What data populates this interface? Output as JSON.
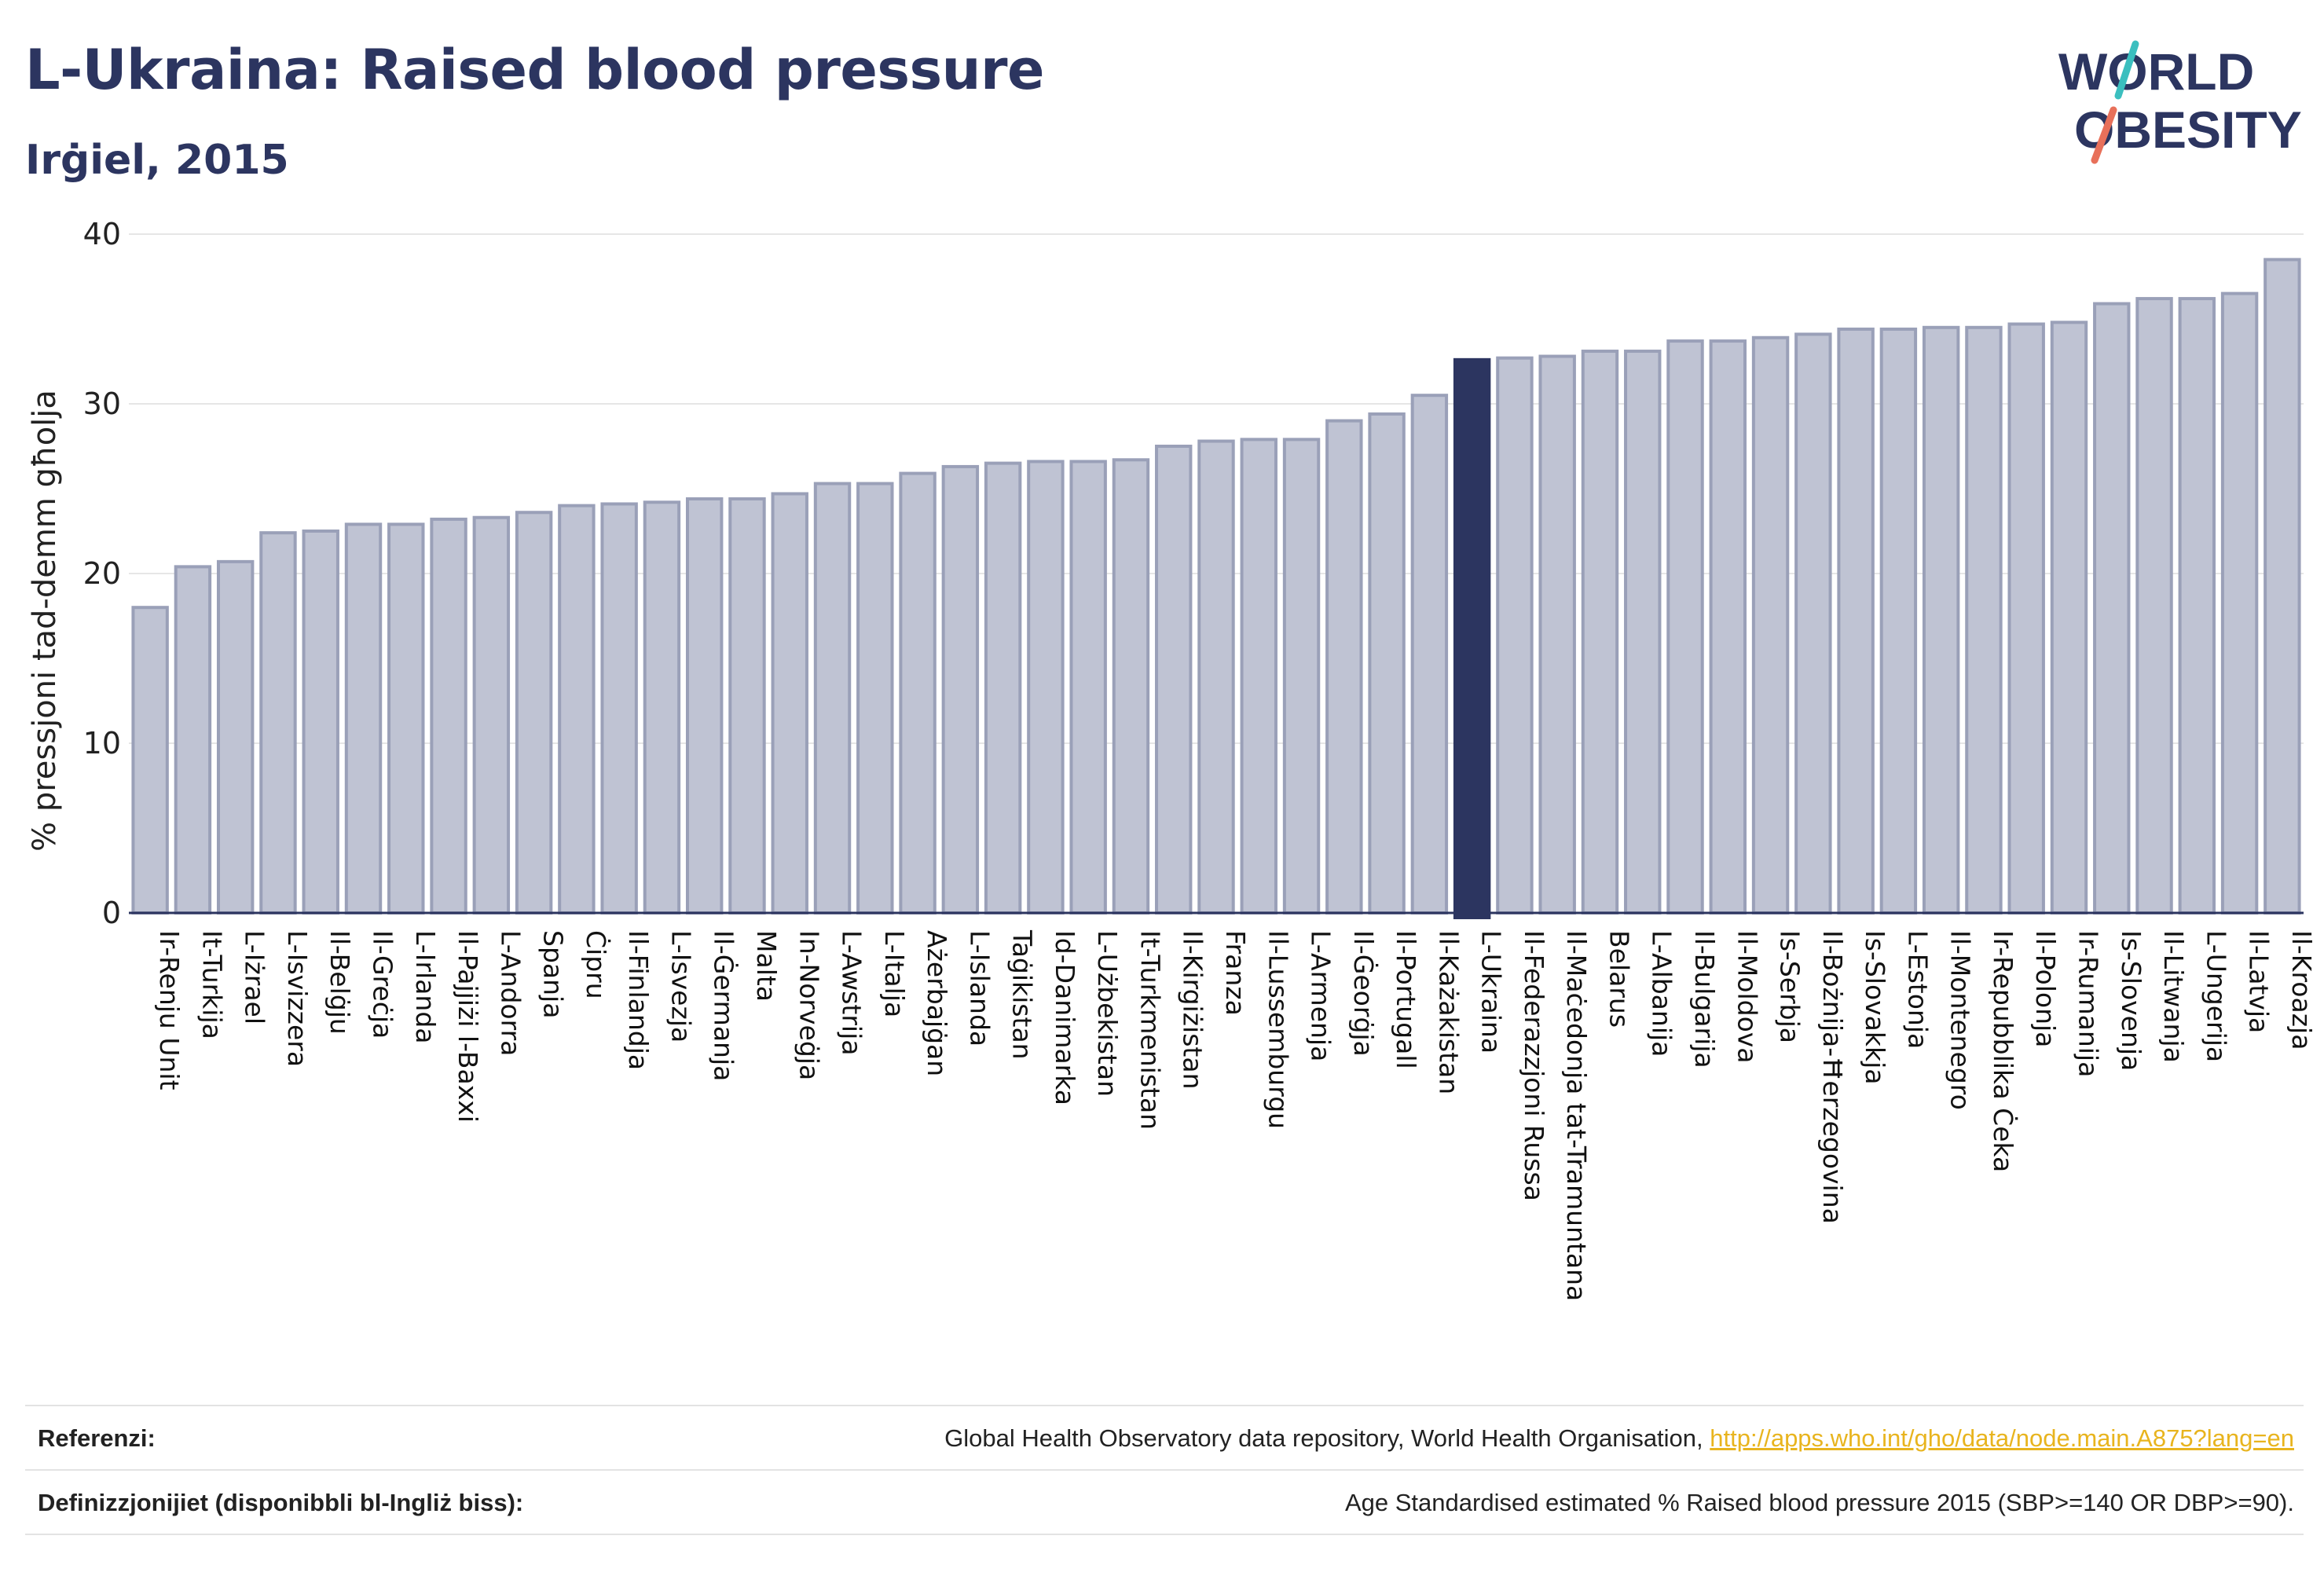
{
  "header": {
    "title": "L-Ukraina: Raised blood pressure",
    "subtitle": "Irġiel, 2015"
  },
  "logo": {
    "line1": "W",
    "line1b": "RLD",
    "line2": "BESITY",
    "text_color": "#2c3560",
    "slash_top_color": "#3bbfbf",
    "slash_bottom_color": "#e8705a"
  },
  "colors": {
    "bar": "#bfc3d3",
    "bar_stroke": "#9aa0b8",
    "highlight": "#2c3560",
    "grid": "#e6e6e6",
    "axis": "#2c3560"
  },
  "chart_data": {
    "type": "bar",
    "ylabel": "% pressjoni tad-demm għolja",
    "ylim": [
      0,
      40
    ],
    "yticks": [
      0,
      10,
      20,
      30,
      40
    ],
    "grid": true,
    "highlight": "L-Ukraina",
    "categories": [
      "Ir-Renju Unit",
      "It-Turkija",
      "L-Iżrael",
      "L-Isvizzera",
      "Il-Belġju",
      "Il-Greċja",
      "L-Irlanda",
      "Il-Pajjiżi l-Baxxi",
      "L-Andorra",
      "Spanja",
      "Ċipru",
      "Il-Finlandja",
      "L-Isvezja",
      "Il-Ġermanja",
      "Malta",
      "In-Norveġja",
      "L-Awstrija",
      "L-Italja",
      "Ażerbajġan",
      "L-Islanda",
      "Taġikistan",
      "Id-Danimarka",
      "L-Użbekistan",
      "It-Turkmenistan",
      "Il-Kirgiżistan",
      "Franza",
      "Il-Lussemburgu",
      "L-Armenja",
      "Il-Ġeorġja",
      "Il-Portugall",
      "Il-Każakistan",
      "L-Ukraina",
      "Il-Federazzjoni Russa",
      "Il-Maċedonja tat-Tramuntana",
      "Belarus",
      "L-Albanija",
      "Il-Bulgarija",
      "Il-Moldova",
      "Is-Serbja",
      "Il-Bożnija-Ħerzegovina",
      "Is-Slovakkja",
      "L-Estonja",
      "Il-Montenegro",
      "Ir-Repubblika Ċeka",
      "Il-Polonja",
      "Ir-Rumanija",
      "Is-Slovenja",
      "Il-Litwanja",
      "L-Ungerija",
      "Il-Latvja",
      "Il-Kroazja"
    ],
    "values": [
      18.0,
      20.4,
      20.7,
      22.4,
      22.5,
      22.9,
      22.9,
      23.2,
      23.3,
      23.6,
      24.0,
      24.1,
      24.2,
      24.4,
      24.4,
      24.7,
      25.3,
      25.3,
      25.9,
      26.3,
      26.5,
      26.6,
      26.6,
      26.7,
      27.5,
      27.8,
      27.9,
      27.9,
      29.0,
      29.4,
      30.5,
      32.6,
      32.7,
      32.8,
      33.1,
      33.1,
      33.7,
      33.7,
      33.9,
      34.1,
      34.4,
      34.4,
      34.5,
      34.5,
      34.7,
      34.8,
      35.9,
      36.2,
      36.2,
      36.5,
      38.5
    ]
  },
  "footer": {
    "references_label": "Referenzi:",
    "references_text": "Global Health Observatory data repository, World Health Organisation,",
    "references_link": "http://apps.who.int/gho/data/node.main.A875?lang=en",
    "definitions_label": "Definizzjonijiet (disponibbli bl-Ingliż biss):",
    "definitions_text": "Age Standardised estimated % Raised blood pressure 2015 (SBP>=140 OR DBP>=90)."
  }
}
